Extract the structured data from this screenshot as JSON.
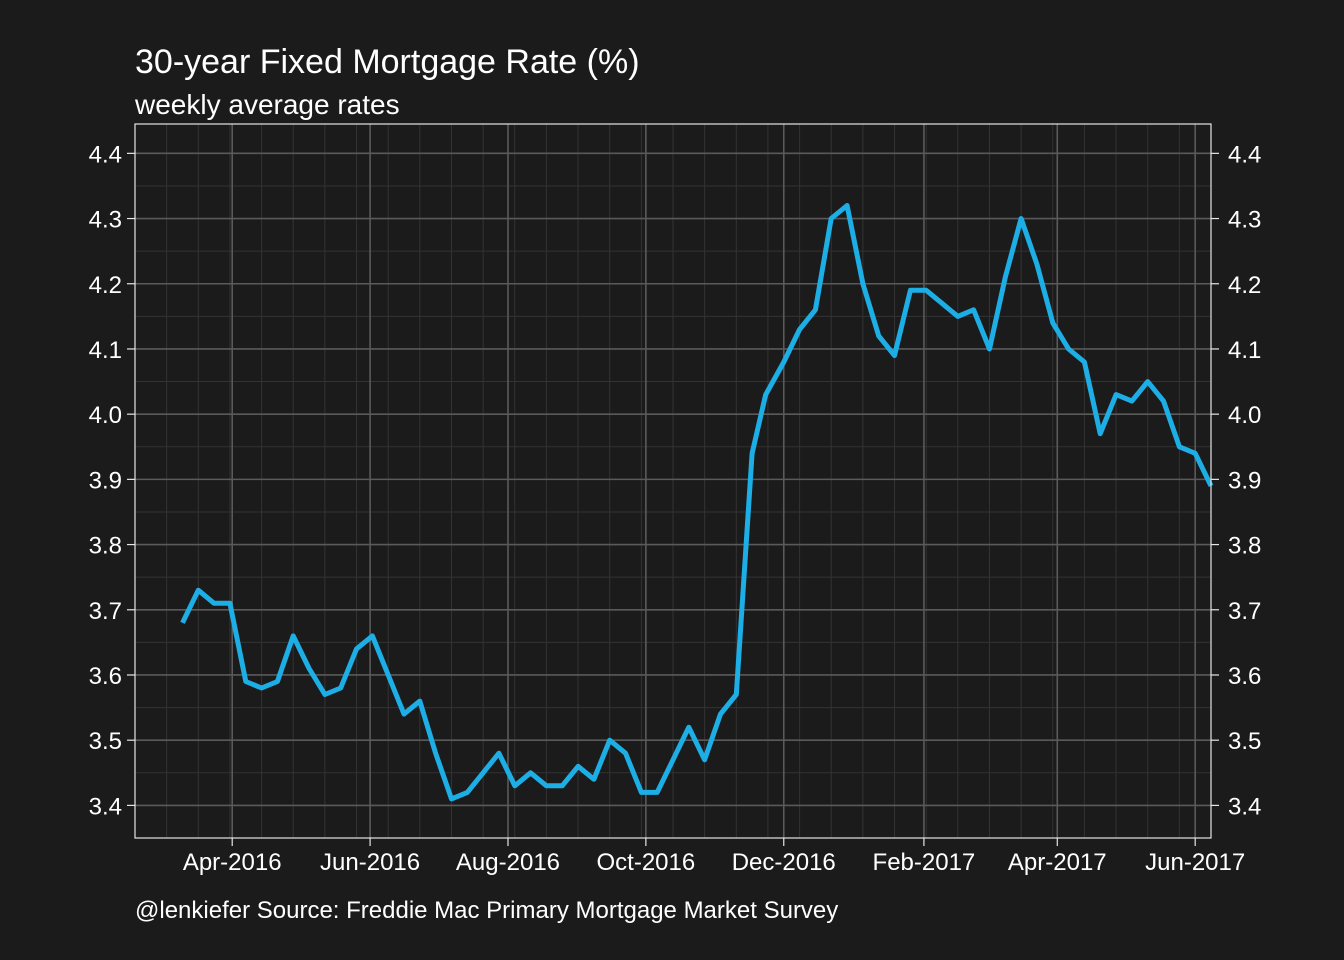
{
  "chart_data": {
    "type": "line",
    "title": "30-year Fixed Mortgage Rate (%)",
    "subtitle": "weekly average rates",
    "caption": "@lenkiefer Source: Freddie Mac Primary Mortgage Market Survey",
    "xlabel": "",
    "ylabel": "",
    "ylim": [
      3.35,
      4.445
    ],
    "xlim": [
      "2016-02-18",
      "2017-06-08"
    ],
    "y_ticks": [
      "3.4",
      "3.5",
      "3.6",
      "3.7",
      "3.8",
      "3.9",
      "4.0",
      "4.1",
      "4.2",
      "4.3",
      "4.4"
    ],
    "x_ticks": [
      {
        "date": "2016-04-01",
        "label": "Apr-2016"
      },
      {
        "date": "2016-06-01",
        "label": "Jun-2016"
      },
      {
        "date": "2016-08-01",
        "label": "Aug-2016"
      },
      {
        "date": "2016-10-01",
        "label": "Oct-2016"
      },
      {
        "date": "2016-12-01",
        "label": "Dec-2016"
      },
      {
        "date": "2017-02-01",
        "label": "Feb-2017"
      },
      {
        "date": "2017-04-01",
        "label": "Apr-2017"
      },
      {
        "date": "2017-06-01",
        "label": "Jun-2017"
      }
    ],
    "grid": true,
    "secondary_y_axis": true,
    "legend": "none",
    "colors": {
      "background": "#1b1b1b",
      "line": "#1daee6",
      "grid": "#5a5a5a",
      "minor_grid": "#333333",
      "frame": "#e6e6e6",
      "text": "#ffffff"
    },
    "series": [
      {
        "x": [
          "2016-03-10",
          "2016-03-17",
          "2016-03-24",
          "2016-03-31",
          "2016-04-07",
          "2016-04-14",
          "2016-04-21",
          "2016-04-28",
          "2016-05-05",
          "2016-05-12",
          "2016-05-19",
          "2016-05-26",
          "2016-06-02",
          "2016-06-09",
          "2016-06-16",
          "2016-06-23",
          "2016-06-30",
          "2016-07-07",
          "2016-07-14",
          "2016-07-21",
          "2016-07-28",
          "2016-08-04",
          "2016-08-11",
          "2016-08-18",
          "2016-08-25",
          "2016-09-01",
          "2016-09-08",
          "2016-09-15",
          "2016-09-22",
          "2016-09-29",
          "2016-10-06",
          "2016-10-13",
          "2016-10-20",
          "2016-10-27",
          "2016-11-03",
          "2016-11-10",
          "2016-11-17",
          "2016-11-23",
          "2016-12-01",
          "2016-12-08",
          "2016-12-15",
          "2016-12-22",
          "2016-12-29",
          "2017-01-05",
          "2017-01-12",
          "2017-01-19",
          "2017-01-26",
          "2017-02-02",
          "2017-02-09",
          "2017-02-16",
          "2017-02-23",
          "2017-03-02",
          "2017-03-09",
          "2017-03-16",
          "2017-03-23",
          "2017-03-30",
          "2017-04-06",
          "2017-04-13",
          "2017-04-20",
          "2017-04-27",
          "2017-05-04",
          "2017-05-11",
          "2017-05-18",
          "2017-05-25",
          "2017-06-01",
          "2017-06-08"
        ],
        "y": [
          3.68,
          3.73,
          3.71,
          3.71,
          3.59,
          3.58,
          3.59,
          3.66,
          3.61,
          3.57,
          3.58,
          3.64,
          3.66,
          3.6,
          3.54,
          3.56,
          3.48,
          3.41,
          3.42,
          3.45,
          3.48,
          3.43,
          3.45,
          3.43,
          3.43,
          3.46,
          3.44,
          3.5,
          3.48,
          3.42,
          3.42,
          3.47,
          3.52,
          3.47,
          3.54,
          3.57,
          3.94,
          4.03,
          4.08,
          4.13,
          4.16,
          4.3,
          4.32,
          4.2,
          4.12,
          4.09,
          4.19,
          4.19,
          4.17,
          4.15,
          4.16,
          4.1,
          4.21,
          4.3,
          4.23,
          4.14,
          4.1,
          4.08,
          3.97,
          4.03,
          4.02,
          4.05,
          4.02,
          3.95,
          3.94,
          3.89
        ]
      }
    ]
  }
}
